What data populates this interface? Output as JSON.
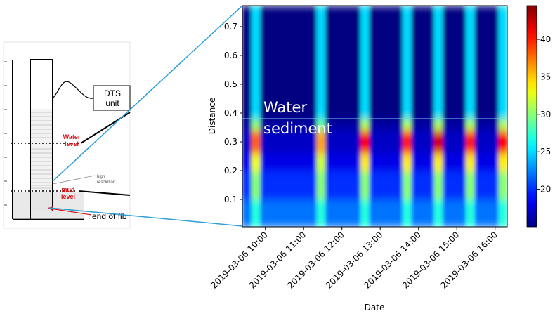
{
  "chart_data": {
    "type": "heatmap",
    "xlabel": "Date",
    "ylabel": "Distance",
    "x": [
      "2019-03-06 09:24",
      "2019-03-06 09:38",
      "2019-03-06 09:52",
      "2019-03-06 11:20",
      "2019-03-06 11:34",
      "2019-03-06 12:29",
      "2019-03-06 12:43",
      "2019-03-06 13:35",
      "2019-03-06 13:49",
      "2019-03-06 14:24",
      "2019-03-06 14:38",
      "2019-03-06 15:14",
      "2019-03-06 15:28",
      "2019-03-06 16:05",
      "2019-03-06 16:19"
    ],
    "y": [
      0.005,
      0.1,
      0.2,
      0.26,
      0.34,
      0.38,
      0.5,
      0.6,
      0.773
    ],
    "z": [
      [
        22,
        27,
        22,
        27,
        22,
        27,
        22,
        27,
        22,
        27,
        22,
        27,
        22,
        27
      ],
      [
        20,
        30,
        20,
        30,
        20,
        30,
        20,
        30,
        20,
        30,
        20,
        30,
        20,
        30
      ],
      [
        18,
        33,
        18,
        32,
        18,
        34,
        18,
        34,
        18,
        34,
        18,
        34,
        18,
        34
      ],
      [
        17,
        38,
        17,
        36,
        17,
        41,
        17,
        40,
        17,
        42,
        17,
        40,
        17,
        41
      ],
      [
        16,
        30,
        16,
        29,
        16,
        31,
        16,
        31,
        16,
        31,
        16,
        31,
        16,
        31
      ],
      [
        15,
        25,
        15,
        25,
        15,
        25,
        15,
        25,
        15,
        25,
        15,
        25,
        15,
        25
      ],
      [
        15,
        25,
        15,
        25,
        15,
        25,
        15,
        25,
        15,
        25,
        15,
        25,
        15,
        25
      ],
      [
        15,
        25,
        15,
        25,
        15,
        25,
        15,
        25,
        15,
        25,
        15,
        25,
        15,
        25
      ]
    ],
    "xlim": [
      "2019-03-06 09:24",
      "2019-03-06 16:19"
    ],
    "xticks": [
      "2019-03-06 10:00",
      "2019-03-06 11:00",
      "2019-03-06 12:00",
      "2019-03-06 13:00",
      "2019-03-06 14:00",
      "2019-03-06 15:00",
      "2019-03-06 16:00"
    ],
    "ylim": [
      0.005,
      0.773
    ],
    "yticks": [
      0.1,
      0.2,
      0.3,
      0.4,
      0.5,
      0.6,
      0.7
    ],
    "colormap": "jet",
    "clim": [
      15,
      44.5
    ],
    "cbar_ticks": [
      20,
      25,
      30,
      35,
      40
    ],
    "hline": 0.38,
    "annotations": [
      "Water",
      "sediment"
    ]
  },
  "diagram": {
    "dts_unit": [
      "DTS",
      "unit"
    ],
    "water_level": [
      "Water",
      "level"
    ],
    "mud_level": [
      "mud",
      "level"
    ],
    "high_resolution": [
      "high",
      "resolution"
    ],
    "end_of_fiber": "end of fib"
  }
}
